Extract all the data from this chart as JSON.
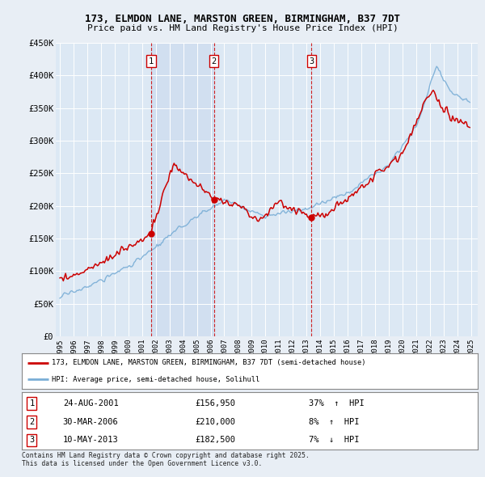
{
  "title_line1": "173, ELMDON LANE, MARSTON GREEN, BIRMINGHAM, B37 7DT",
  "title_line2": "Price paid vs. HM Land Registry's House Price Index (HPI)",
  "legend_label_red": "173, ELMDON LANE, MARSTON GREEN, BIRMINGHAM, B37 7DT (semi-detached house)",
  "legend_label_blue": "HPI: Average price, semi-detached house, Solihull",
  "footer": "Contains HM Land Registry data © Crown copyright and database right 2025.\nThis data is licensed under the Open Government Licence v3.0.",
  "sales": [
    {
      "num": 1,
      "date": "24-AUG-2001",
      "price": 156950,
      "pct": "37%",
      "dir": "↑",
      "year": 2001.65
    },
    {
      "num": 2,
      "date": "30-MAR-2006",
      "price": 210000,
      "pct": "8%",
      "dir": "↑",
      "year": 2006.25
    },
    {
      "num": 3,
      "date": "10-MAY-2013",
      "price": 182500,
      "pct": "7%",
      "dir": "↓",
      "year": 2013.36
    }
  ],
  "ylim": [
    0,
    450000
  ],
  "xlim_start": 1994.7,
  "xlim_end": 2025.5,
  "bg_color": "#e8eef5",
  "plot_bg": "#dce8f4",
  "red_color": "#cc0000",
  "blue_color": "#7aaed6",
  "grid_color": "#ffffff",
  "yticks": [
    0,
    50000,
    100000,
    150000,
    200000,
    250000,
    300000,
    350000,
    400000,
    450000
  ],
  "ytick_labels": [
    "£0",
    "£50K",
    "£100K",
    "£150K",
    "£200K",
    "£250K",
    "£300K",
    "£350K",
    "£400K",
    "£450K"
  ]
}
